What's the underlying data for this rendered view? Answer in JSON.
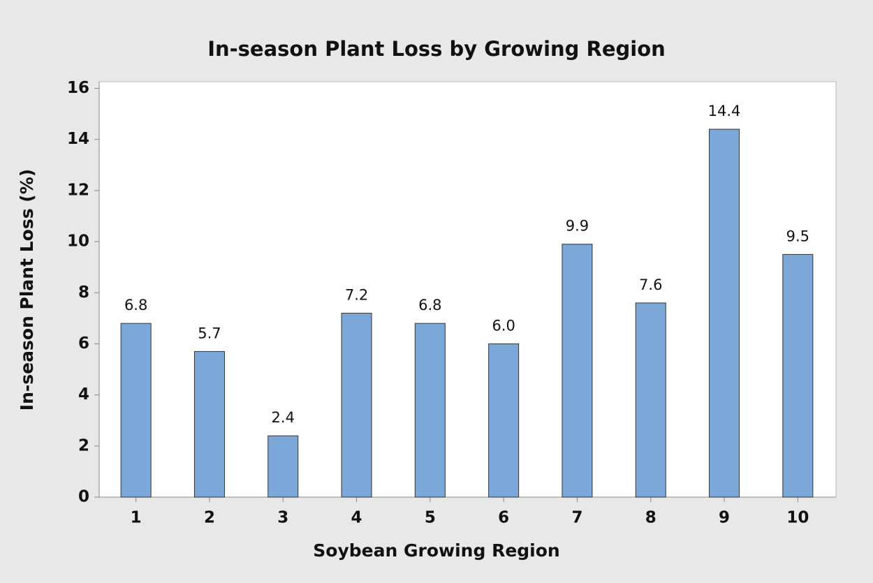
{
  "chart_data": {
    "type": "bar",
    "title": "In-season Plant Loss by Growing Region",
    "x_label": "Soybean Growing Region",
    "y_label": "In-season Plant Loss (%)",
    "categories": [
      "1",
      "2",
      "3",
      "4",
      "5",
      "6",
      "7",
      "8",
      "9",
      "10"
    ],
    "values": [
      6.8,
      5.7,
      2.4,
      7.2,
      6.8,
      6.0,
      9.9,
      7.6,
      14.4,
      9.5
    ],
    "value_labels": [
      "6.8",
      "5.7",
      "2.4",
      "7.2",
      "6.8",
      "6.0",
      "9.9",
      "7.6",
      "14.4",
      "9.5"
    ],
    "color": "#7ba7d9",
    "ylim": [
      0,
      16.26
    ],
    "yticks": [
      0,
      2,
      4,
      6,
      8,
      10,
      12,
      14,
      16
    ],
    "grid": false
  }
}
